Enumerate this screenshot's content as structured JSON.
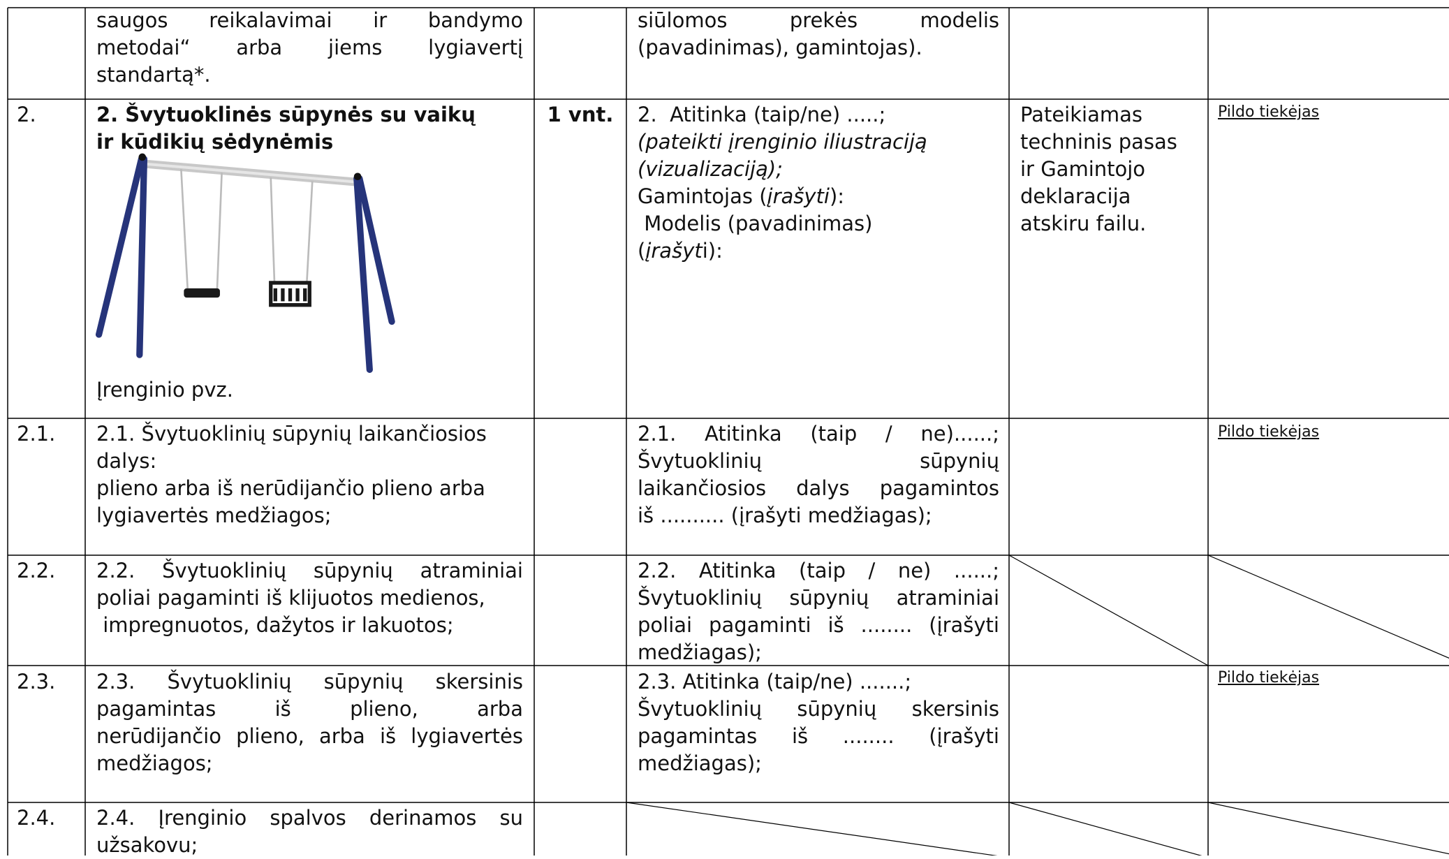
{
  "table": {
    "rows": [
      {
        "item": [
          "saugos reikalavimai ir bandymo",
          "metodai“ arba jiems lygiavertį",
          "standartą*."
        ],
        "offer": [
          "siūlomos prekės modelis",
          "(pavadinimas), gamintojas)."
        ]
      },
      {
        "number": "2.",
        "title": [
          "2. Švytuoklinės sūpynės su vaikų",
          "ir kūdikių sėdynėmis"
        ],
        "image_caption": "Įrenginio pvz.",
        "quantity": "1 vnt.",
        "offer": [
          "2.  Atitinka (taip/ne) .....;",
          "(pateikti įrenginio iliustraciją",
          "(vizualizaciją);",
          [
            "Gamintojas (",
            "įrašyti",
            "):"
          ],
          " Modelis (pavadinimas)",
          [
            "(",
            "įrašyt",
            "i):"
          ]
        ],
        "documents": [
          "Pateikiamas",
          "techninis pasas",
          "ir Gamintojo",
          "deklaracija",
          "atskiru failu."
        ],
        "note": "Pildo tiekėjas"
      },
      {
        "number": "2.1.",
        "item": [
          "2.1. Švytuoklinių sūpynių laikančiosios",
          "dalys:",
          "plieno arba iš nerūdijančio plieno arba",
          "lygiavertės medžiagos;"
        ],
        "offer": [
          "2.1. Atitinka (taip / ne)......;",
          "Švytuoklinių sūpynių",
          "laikančiosios dalys pagamintos",
          "iš .......... (įrašyti medžiagas);"
        ],
        "note": "Pildo tiekėjas"
      },
      {
        "number": "2.2.",
        "item": [
          "2.2.  Švytuoklinių sūpynių atraminiai",
          "poliai pagaminti iš klijuotos medienos,",
          " impregnuotos, dažytos ir lakuotos;"
        ],
        "offer": [
          "2.2. Atitinka (taip / ne) ......;",
          "Švytuoklinių sūpynių atraminiai",
          "poliai pagaminti  iš ........ (įrašyti",
          "medžiagas);"
        ]
      },
      {
        "number": "2.3.",
        "item": [
          "2.3. Švytuoklinių sūpynių skersinis",
          "pagamintas iš plieno, arba",
          "nerūdijančio plieno, arba iš lygiavertės",
          "medžiagos;"
        ],
        "offer": [
          "2.3. Atitinka (taip/ne) .......;",
          "Švytuoklinių sūpynių skersinis",
          "pagamintas iš ........ (įrašyti",
          "medžiagas);"
        ],
        "note": "Pildo tiekėjas"
      },
      {
        "number": "2.4.",
        "item": [
          "2.4. Įrenginio spalvos derinamos su",
          "užsakovu;"
        ]
      }
    ]
  }
}
